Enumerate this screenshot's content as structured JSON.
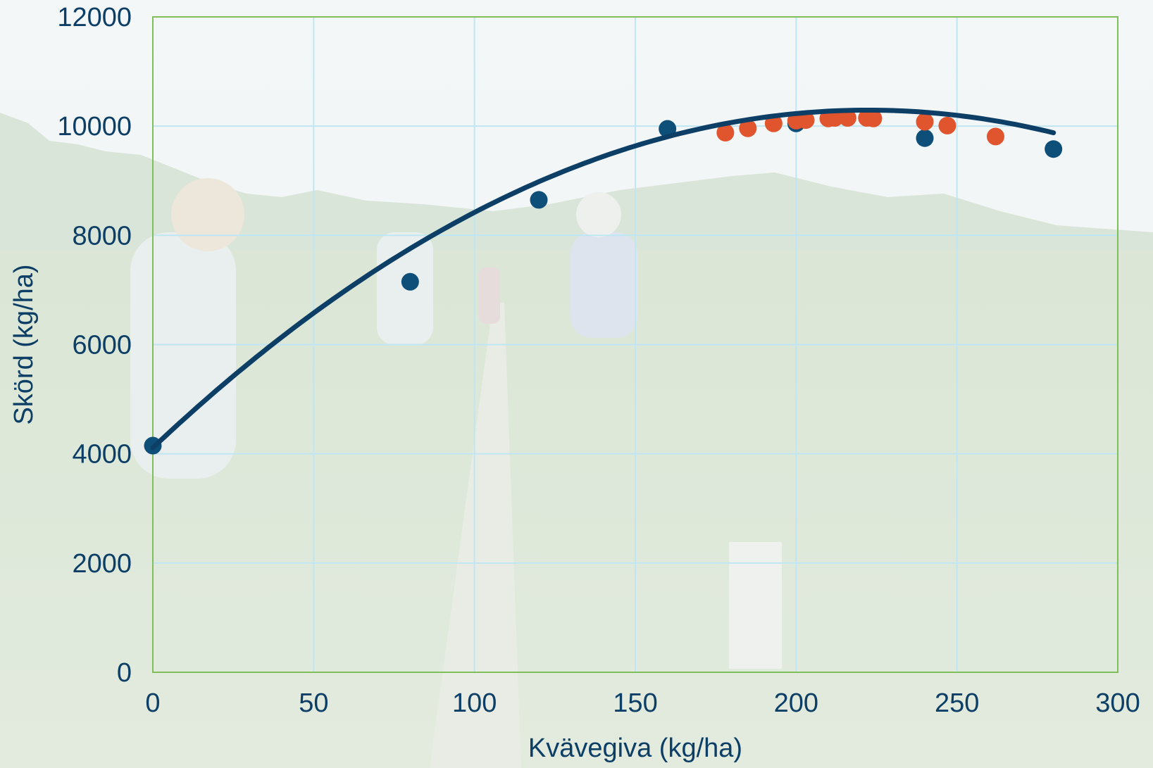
{
  "chart_data": {
    "type": "scatter",
    "title": "",
    "xlabel": "Kvävegiva (kg/ha)",
    "ylabel": "Skörd (kg/ha)",
    "xlim": [
      0,
      300
    ],
    "ylim": [
      0,
      12000
    ],
    "x_ticks": [
      "0",
      "50",
      "100",
      "150",
      "200",
      "250",
      "300"
    ],
    "y_ticks": [
      "0",
      "2000",
      "4000",
      "6000",
      "8000",
      "10000",
      "12000"
    ],
    "grid": true,
    "legend": "none",
    "background": "photo of a green wheat field with people",
    "series": [
      {
        "color": "#0d4f78",
        "points": [
          {
            "x": 0,
            "y": 4150
          },
          {
            "x": 80,
            "y": 7150
          },
          {
            "x": 120,
            "y": 8650
          },
          {
            "x": 160,
            "y": 9950
          },
          {
            "x": 200,
            "y": 10050
          },
          {
            "x": 240,
            "y": 9780
          },
          {
            "x": 280,
            "y": 9580
          }
        ]
      },
      {
        "color": "#e0542e",
        "points": [
          {
            "x": 178,
            "y": 9880
          },
          {
            "x": 185,
            "y": 9960
          },
          {
            "x": 193,
            "y": 10050
          },
          {
            "x": 200,
            "y": 10100
          },
          {
            "x": 203,
            "y": 10110
          },
          {
            "x": 210,
            "y": 10140
          },
          {
            "x": 212,
            "y": 10150
          },
          {
            "x": 216,
            "y": 10150
          },
          {
            "x": 222,
            "y": 10150
          },
          {
            "x": 224,
            "y": 10140
          },
          {
            "x": 240,
            "y": 10080
          },
          {
            "x": 247,
            "y": 10010
          },
          {
            "x": 262,
            "y": 9810
          }
        ]
      }
    ],
    "fit_curve": {
      "type": "quadratic",
      "color": "#0d3f66",
      "x_range": [
        0,
        280
      ],
      "coefficients": [
        4110,
        55.6,
        -0.125
      ]
    }
  }
}
